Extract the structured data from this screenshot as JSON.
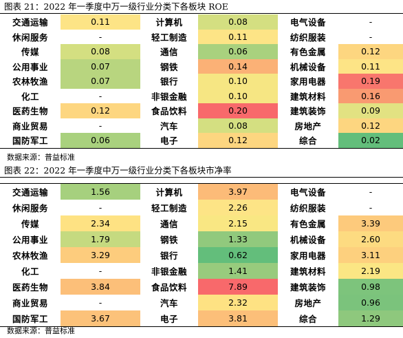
{
  "roe": {
    "caption": "图表 21：2022 年一季度中万一级行业分类下各板块 ROE",
    "source": "数据来源：普益标准",
    "rows": [
      [
        {
          "n": "交通运输",
          "v": "0.11",
          "c": "#fde486"
        },
        {
          "n": "计算机",
          "v": "0.08",
          "c": "#d4df81"
        },
        {
          "n": "电气设备",
          "v": "-",
          "c": ""
        }
      ],
      [
        {
          "n": "休闲服务",
          "v": "-",
          "c": ""
        },
        {
          "n": "轻工制造",
          "v": "0.11",
          "c": "#fde486"
        },
        {
          "n": "纺织服装",
          "v": "-",
          "c": ""
        }
      ],
      [
        {
          "n": "传媒",
          "v": "0.08",
          "c": "#d4df81"
        },
        {
          "n": "通信",
          "v": "0.06",
          "c": "#a9d17e"
        },
        {
          "n": "有色金属",
          "v": "0.12",
          "c": "#fdd680"
        }
      ],
      [
        {
          "n": "公用事业",
          "v": "0.07",
          "c": "#b8d57f"
        },
        {
          "n": "钢铁",
          "v": "0.14",
          "c": "#fbb176"
        },
        {
          "n": "机械设备",
          "v": "0.11",
          "c": "#fde486"
        }
      ],
      [
        {
          "n": "农林牧渔",
          "v": "0.07",
          "c": "#b8d57f"
        },
        {
          "n": "银行",
          "v": "0.10",
          "c": "#f6e683"
        },
        {
          "n": "家用电器",
          "v": "0.19",
          "c": "#f8766d"
        }
      ],
      [
        {
          "n": "化工",
          "v": "-",
          "c": ""
        },
        {
          "n": "非银金融",
          "v": "0.10",
          "c": "#f6e683"
        },
        {
          "n": "建筑材料",
          "v": "0.16",
          "c": "#f99a71"
        }
      ],
      [
        {
          "n": "医药生物",
          "v": "0.12",
          "c": "#fdd680"
        },
        {
          "n": "食品饮料",
          "v": "0.20",
          "c": "#f8696b"
        },
        {
          "n": "建筑装饰",
          "v": "0.09",
          "c": "#e2e282"
        }
      ],
      [
        {
          "n": "商业贸易",
          "v": "-",
          "c": ""
        },
        {
          "n": "汽车",
          "v": "0.08",
          "c": "#d4df81"
        },
        {
          "n": "房地产",
          "v": "0.12",
          "c": "#fdd680"
        }
      ],
      [
        {
          "n": "国防军工",
          "v": "0.06",
          "c": "#a9d17e"
        },
        {
          "n": "电子",
          "v": "0.12",
          "c": "#fdd680"
        },
        {
          "n": "综合",
          "v": "0.02",
          "c": "#63be7b"
        }
      ]
    ]
  },
  "pe": {
    "caption": "图表 22：2022 年一季度中万一级行业分类下各板块市净率",
    "source": "数据来源：普益标准",
    "rows": [
      [
        {
          "n": "交通运输",
          "v": "1.56",
          "c": "#a6d07e"
        },
        {
          "n": "计算机",
          "v": "3.97",
          "c": "#fcbb78"
        },
        {
          "n": "电气设备",
          "v": "-",
          "c": ""
        }
      ],
      [
        {
          "n": "休闲服务",
          "v": "-",
          "c": ""
        },
        {
          "n": "轻工制造",
          "v": "2.26",
          "c": "#fde486"
        },
        {
          "n": "纺织服装",
          "v": "-",
          "c": ""
        }
      ],
      [
        {
          "n": "传媒",
          "v": "2.34",
          "c": "#fee283"
        },
        {
          "n": "通信",
          "v": "2.15",
          "c": "#f9e783"
        },
        {
          "n": "有色金属",
          "v": "3.39",
          "c": "#fdca7c"
        }
      ],
      [
        {
          "n": "公用事业",
          "v": "1.79",
          "c": "#c5da80"
        },
        {
          "n": "钢铁",
          "v": "1.33",
          "c": "#91c97d"
        },
        {
          "n": "机械设备",
          "v": "2.60",
          "c": "#fddb81"
        }
      ],
      [
        {
          "n": "农林牧渔",
          "v": "3.29",
          "c": "#fdcc7d"
        },
        {
          "n": "银行",
          "v": "0.62",
          "c": "#63be7b"
        },
        {
          "n": "家用电器",
          "v": "3.11",
          "c": "#fdd07e"
        }
      ],
      [
        {
          "n": "化工",
          "v": "-",
          "c": ""
        },
        {
          "n": "非银金融",
          "v": "1.41",
          "c": "#98cb7d"
        },
        {
          "n": "建筑材料",
          "v": "2.19",
          "c": "#fbe684"
        }
      ],
      [
        {
          "n": "医药生物",
          "v": "3.84",
          "c": "#fcbf79"
        },
        {
          "n": "食品饮料",
          "v": "7.89",
          "c": "#f8696b"
        },
        {
          "n": "建筑装饰",
          "v": "0.98",
          "c": "#7dc47c"
        }
      ],
      [
        {
          "n": "商业贸易",
          "v": "-",
          "c": ""
        },
        {
          "n": "汽车",
          "v": "2.32",
          "c": "#fee283"
        },
        {
          "n": "房地产",
          "v": "0.96",
          "c": "#7bc37c"
        }
      ],
      [
        {
          "n": "国防军工",
          "v": "3.67",
          "c": "#fcc27a"
        },
        {
          "n": "电子",
          "v": "3.81",
          "c": "#fcbf79"
        },
        {
          "n": "综合",
          "v": "1.29",
          "c": "#8ec87d"
        }
      ]
    ]
  }
}
